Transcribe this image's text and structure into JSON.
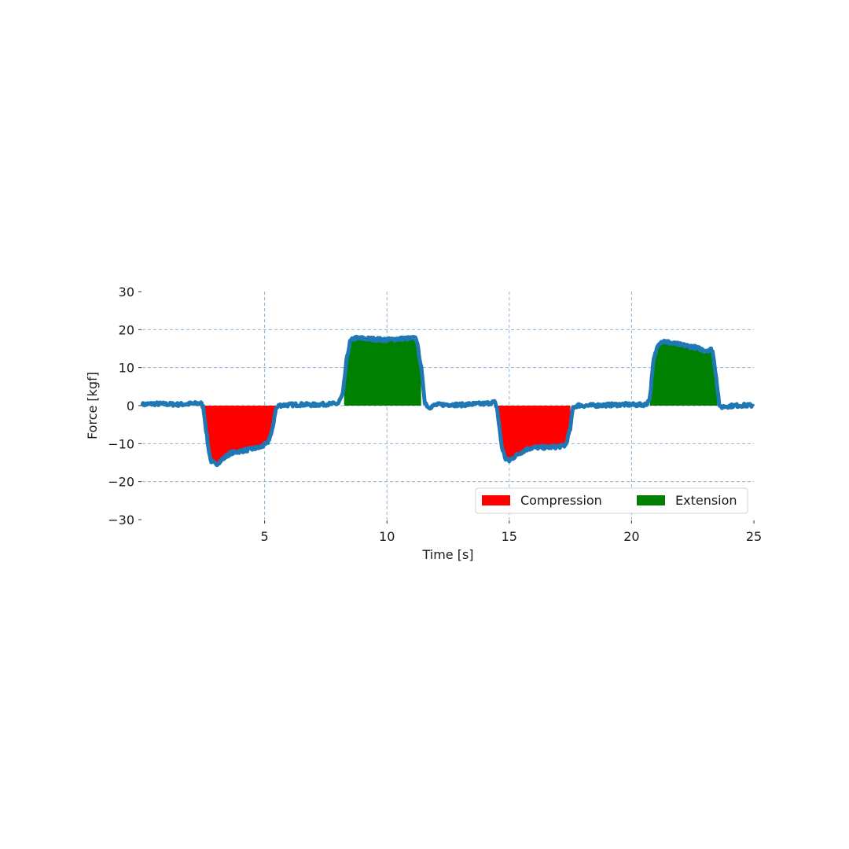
{
  "chart_data": {
    "type": "area",
    "title": "",
    "xlabel": "Time [s]",
    "ylabel": "Force [kgf]",
    "xlim": [
      0,
      25
    ],
    "ylim": [
      -30,
      30
    ],
    "xticks": [
      5,
      10,
      15,
      20,
      25
    ],
    "yticks": [
      -30,
      -20,
      -10,
      0,
      10,
      20,
      30
    ],
    "xtick_labels": [
      "5",
      "10",
      "15",
      "20",
      "25"
    ],
    "ytick_labels": [
      "−30",
      "−20",
      "−10",
      "0",
      "10",
      "20",
      "30"
    ],
    "grid": true,
    "grid_style": "dashed",
    "legend_position": "lower right",
    "legend": [
      {
        "label": "Compression",
        "color": "#ff0000"
      },
      {
        "label": "Extension",
        "color": "#008000"
      }
    ],
    "line_color": "#1f77b4",
    "series": [
      {
        "name": "Force",
        "x": [
          0,
          0.5,
          1,
          1.5,
          2,
          2.4,
          2.5,
          2.6,
          2.7,
          2.8,
          3.0,
          3.3,
          3.6,
          4.0,
          4.4,
          4.8,
          5.1,
          5.3,
          5.45,
          5.6,
          6.0,
          6.5,
          7.0,
          7.5,
          8.0,
          8.2,
          8.35,
          8.5,
          8.7,
          9.0,
          9.5,
          10.0,
          10.5,
          11.0,
          11.2,
          11.4,
          11.55,
          11.7,
          12.0,
          12.5,
          13.0,
          13.5,
          14.0,
          14.4,
          14.5,
          14.6,
          14.7,
          14.85,
          15.0,
          15.3,
          15.7,
          16.0,
          16.5,
          17.0,
          17.3,
          17.5,
          17.6,
          17.8,
          18.2,
          18.7,
          19.2,
          19.7,
          20.2,
          20.6,
          20.75,
          20.9,
          21.1,
          21.3,
          21.6,
          22.0,
          22.5,
          23.0,
          23.3,
          23.45,
          23.6,
          23.8,
          24.2,
          24.6,
          25.0
        ],
        "y": [
          0.3,
          0.5,
          0.4,
          0.3,
          0.5,
          0.6,
          -0.5,
          -6,
          -11,
          -14.5,
          -15.5,
          -14,
          -12.5,
          -12,
          -11.5,
          -11,
          -10,
          -7,
          -1,
          0.1,
          0.2,
          0.3,
          0.2,
          0.4,
          0.5,
          3,
          12,
          17,
          17.8,
          17.7,
          17.5,
          17.3,
          17.6,
          17.7,
          17.8,
          10,
          1,
          -0.5,
          0.2,
          0.3,
          0.2,
          0.4,
          0.5,
          0.9,
          -0.5,
          -6,
          -11,
          -14,
          -14.5,
          -13,
          -11.5,
          -11,
          -11,
          -10.8,
          -10.5,
          -6,
          -0.5,
          0.1,
          0,
          0.1,
          0.2,
          0.3,
          0.2,
          0.3,
          2,
          12,
          16.5,
          17,
          16.5,
          16,
          15.5,
          14.5,
          14.8,
          8,
          -0.5,
          -0.2,
          0,
          0.1,
          0
        ]
      }
    ],
    "fills": [
      {
        "name": "Compression",
        "color": "#ff0000",
        "x_range": [
          2.5,
          5.45
        ],
        "region": "below zero"
      },
      {
        "name": "Extension",
        "color": "#008000",
        "x_range": [
          8.25,
          11.4
        ],
        "region": "above zero"
      },
      {
        "name": "Compression",
        "color": "#ff0000",
        "x_range": [
          14.5,
          17.5
        ],
        "region": "below zero"
      },
      {
        "name": "Extension",
        "color": "#008000",
        "x_range": [
          20.75,
          23.5
        ],
        "region": "above zero"
      }
    ]
  }
}
